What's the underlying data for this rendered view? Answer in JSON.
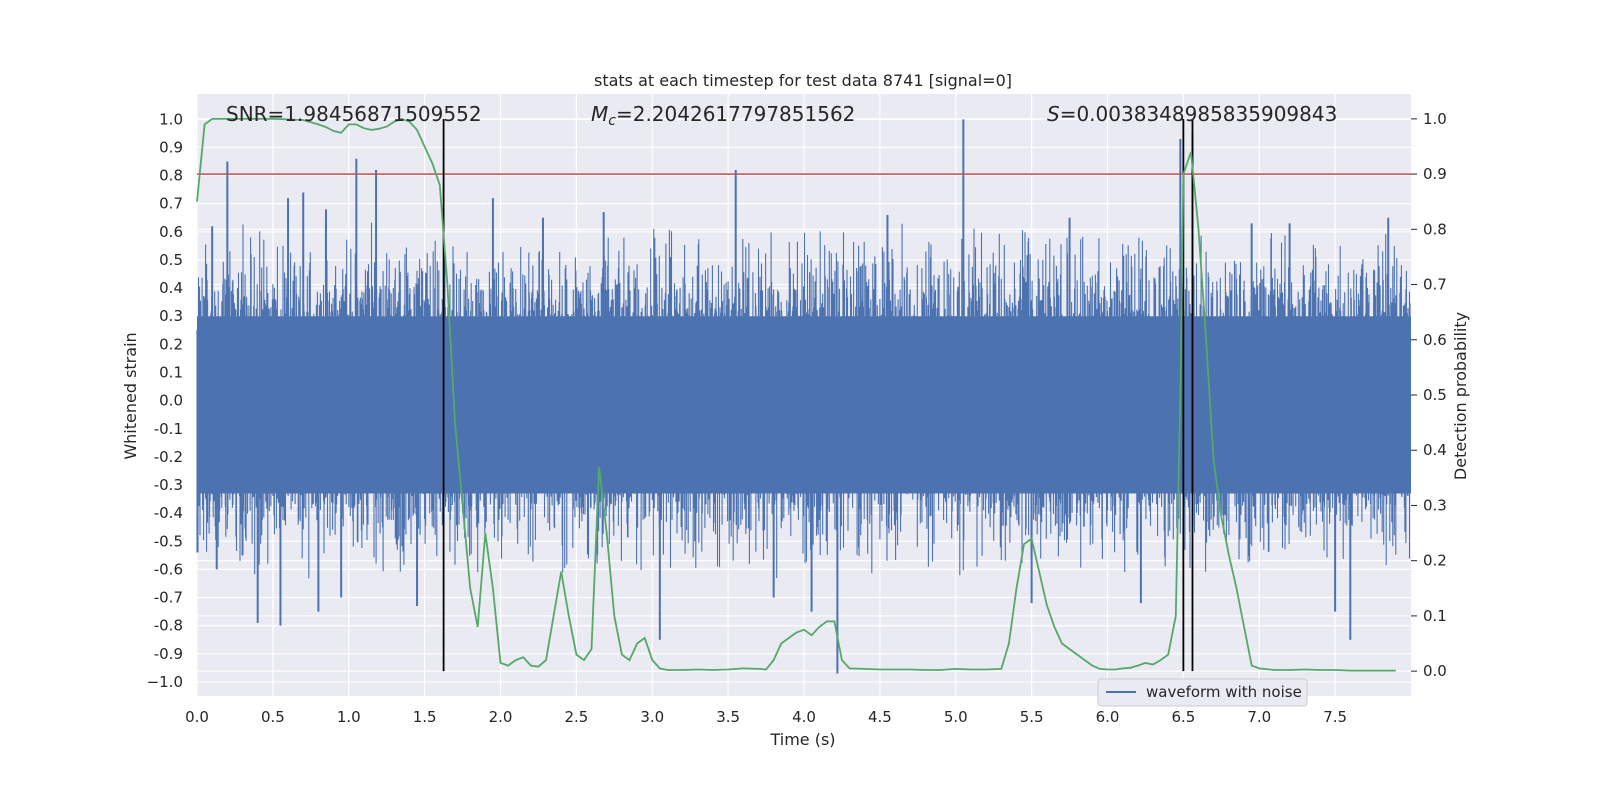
{
  "chart_data": {
    "type": "line",
    "title": "stats at each timestep for test data 8741 [signal=0]",
    "xlabel": "Time (s)",
    "ylabel": "Whitened strain",
    "y2label": "Detection probability",
    "xlim": [
      0.0,
      8.0
    ],
    "ylim": [
      -1.05,
      1.09
    ],
    "y2lim": [
      -0.045,
      1.045
    ],
    "xticks": [
      "0.0",
      "0.5",
      "1.0",
      "1.5",
      "2.0",
      "2.5",
      "3.0",
      "3.5",
      "4.0",
      "4.5",
      "5.0",
      "5.5",
      "6.0",
      "6.5",
      "7.0",
      "7.5"
    ],
    "xtick_values": [
      0.0,
      0.5,
      1.0,
      1.5,
      2.0,
      2.5,
      3.0,
      3.5,
      4.0,
      4.5,
      5.0,
      5.5,
      6.0,
      6.5,
      7.0,
      7.5
    ],
    "yticks": [
      "1.0",
      "0.9",
      "0.8",
      "0.7",
      "0.6",
      "0.5",
      "0.4",
      "0.3",
      "0.2",
      "0.1",
      "0.0",
      "-0.1",
      "-0.2",
      "-0.3",
      "-0.4",
      "-0.5",
      "-0.6",
      "-0.7",
      "-0.8",
      "-0.9",
      "−1.0"
    ],
    "ytick_values": [
      1.0,
      0.9,
      0.8,
      0.7,
      0.6,
      0.5,
      0.4,
      0.3,
      0.2,
      0.1,
      0.0,
      -0.1,
      -0.2,
      -0.3,
      -0.4,
      -0.5,
      -0.6,
      -0.7,
      -0.8,
      -0.9,
      -1.0
    ],
    "y2ticks": [
      "1.0",
      "0.9",
      "0.8",
      "0.7",
      "0.6",
      "0.5",
      "0.4",
      "0.3",
      "0.2",
      "0.1",
      "0.0"
    ],
    "y2tick_values": [
      1.0,
      0.9,
      0.8,
      0.7,
      0.6,
      0.5,
      0.4,
      0.3,
      0.2,
      0.1,
      0.0
    ],
    "annotations": {
      "snr": "SNR=1.98456871509552",
      "mc_symbol": "M",
      "mc_sub": "c",
      "mc_value": "=2.2042617797851562",
      "s_symbol": "S",
      "s_value": "=0.0038348985835909843"
    },
    "threshold": 0.9,
    "vertical_lines": [
      1.625,
      6.5,
      6.56
    ],
    "legend": {
      "label": "waveform with noise",
      "position": "lower-right"
    },
    "grid": true,
    "colors": {
      "waveform": "#4c72b0",
      "probability": "#55a868",
      "threshold": "#c44e52",
      "markers": "#000000",
      "background": "#eaeaf2"
    },
    "series": [
      {
        "name": "waveform with noise",
        "axis": "left",
        "sample_rate": "noise, approx. uniform amplitude ±0.45 with spikes",
        "spikes": [
          {
            "x": 0.1,
            "y": 0.62
          },
          {
            "x": 0.13,
            "y": -0.6
          },
          {
            "x": 0.2,
            "y": 0.85
          },
          {
            "x": 0.3,
            "y": -0.55
          },
          {
            "x": 0.4,
            "y": -0.79
          },
          {
            "x": 0.55,
            "y": -0.8
          },
          {
            "x": 0.6,
            "y": 0.72
          },
          {
            "x": 0.7,
            "y": 0.74
          },
          {
            "x": 0.8,
            "y": -0.75
          },
          {
            "x": 0.85,
            "y": 0.68
          },
          {
            "x": 0.95,
            "y": -0.7
          },
          {
            "x": 1.05,
            "y": 0.86
          },
          {
            "x": 1.18,
            "y": 0.82
          },
          {
            "x": 1.45,
            "y": -0.73
          },
          {
            "x": 1.95,
            "y": 0.72
          },
          {
            "x": 2.28,
            "y": 0.65
          },
          {
            "x": 2.68,
            "y": 0.67
          },
          {
            "x": 3.05,
            "y": -0.85
          },
          {
            "x": 3.55,
            "y": 0.82
          },
          {
            "x": 3.8,
            "y": -0.7
          },
          {
            "x": 4.05,
            "y": -0.75
          },
          {
            "x": 4.22,
            "y": -0.97
          },
          {
            "x": 4.55,
            "y": 0.66
          },
          {
            "x": 5.05,
            "y": 1.0
          },
          {
            "x": 5.5,
            "y": -0.72
          },
          {
            "x": 5.75,
            "y": 0.65
          },
          {
            "x": 6.22,
            "y": -0.72
          },
          {
            "x": 6.48,
            "y": 0.93
          },
          {
            "x": 6.56,
            "y": 0.95
          },
          {
            "x": 6.95,
            "y": 0.63
          },
          {
            "x": 7.2,
            "y": 0.63
          },
          {
            "x": 7.5,
            "y": -0.75
          },
          {
            "x": 7.6,
            "y": -0.85
          },
          {
            "x": 7.85,
            "y": 0.65
          }
        ]
      },
      {
        "name": "detection probability",
        "axis": "right",
        "x": [
          0.0,
          0.05,
          0.1,
          0.2,
          0.3,
          0.4,
          0.5,
          0.6,
          0.7,
          0.8,
          0.85,
          0.9,
          0.95,
          1.0,
          1.05,
          1.1,
          1.15,
          1.2,
          1.25,
          1.3,
          1.35,
          1.4,
          1.45,
          1.5,
          1.55,
          1.6,
          1.65,
          1.7,
          1.75,
          1.8,
          1.85,
          1.9,
          1.95,
          2.0,
          2.05,
          2.1,
          2.15,
          2.2,
          2.25,
          2.3,
          2.35,
          2.4,
          2.45,
          2.5,
          2.55,
          2.6,
          2.65,
          2.7,
          2.75,
          2.8,
          2.85,
          2.9,
          2.95,
          3.0,
          3.05,
          3.1,
          3.2,
          3.3,
          3.4,
          3.5,
          3.6,
          3.7,
          3.75,
          3.8,
          3.85,
          3.9,
          3.95,
          4.0,
          4.05,
          4.1,
          4.15,
          4.2,
          4.25,
          4.3,
          4.4,
          4.5,
          4.6,
          4.7,
          4.8,
          4.9,
          5.0,
          5.1,
          5.2,
          5.3,
          5.35,
          5.4,
          5.45,
          5.5,
          5.55,
          5.6,
          5.65,
          5.7,
          5.75,
          5.8,
          5.85,
          5.9,
          5.95,
          6.0,
          6.05,
          6.1,
          6.15,
          6.2,
          6.25,
          6.3,
          6.35,
          6.4,
          6.45,
          6.48,
          6.5,
          6.55,
          6.6,
          6.65,
          6.7,
          6.75,
          6.8,
          6.85,
          6.9,
          6.95,
          7.0,
          7.1,
          7.2,
          7.3,
          7.4,
          7.5,
          7.6,
          7.7,
          7.8,
          7.9
        ],
        "values": [
          0.85,
          0.99,
          1.0,
          1.0,
          1.0,
          1.0,
          1.0,
          0.999,
          0.998,
          0.99,
          0.985,
          0.978,
          0.975,
          0.99,
          0.99,
          0.983,
          0.98,
          0.982,
          0.986,
          0.995,
          1.0,
          0.995,
          0.98,
          0.95,
          0.92,
          0.88,
          0.7,
          0.45,
          0.3,
          0.15,
          0.08,
          0.25,
          0.15,
          0.015,
          0.01,
          0.02,
          0.025,
          0.01,
          0.008,
          0.02,
          0.1,
          0.18,
          0.1,
          0.03,
          0.02,
          0.04,
          0.37,
          0.25,
          0.1,
          0.03,
          0.02,
          0.05,
          0.06,
          0.02,
          0.005,
          0.002,
          0.002,
          0.003,
          0.002,
          0.003,
          0.005,
          0.004,
          0.003,
          0.02,
          0.05,
          0.06,
          0.07,
          0.075,
          0.065,
          0.08,
          0.09,
          0.09,
          0.02,
          0.005,
          0.004,
          0.003,
          0.003,
          0.003,
          0.002,
          0.002,
          0.004,
          0.003,
          0.003,
          0.004,
          0.05,
          0.15,
          0.23,
          0.24,
          0.18,
          0.12,
          0.08,
          0.05,
          0.04,
          0.03,
          0.02,
          0.01,
          0.004,
          0.003,
          0.003,
          0.005,
          0.006,
          0.01,
          0.015,
          0.012,
          0.02,
          0.03,
          0.1,
          0.5,
          0.9,
          0.94,
          0.8,
          0.6,
          0.38,
          0.28,
          0.21,
          0.15,
          0.08,
          0.01,
          0.005,
          0.002,
          0.002,
          0.003,
          0.002,
          0.002,
          0.001,
          0.001,
          0.001,
          0.001
        ]
      }
    ]
  }
}
